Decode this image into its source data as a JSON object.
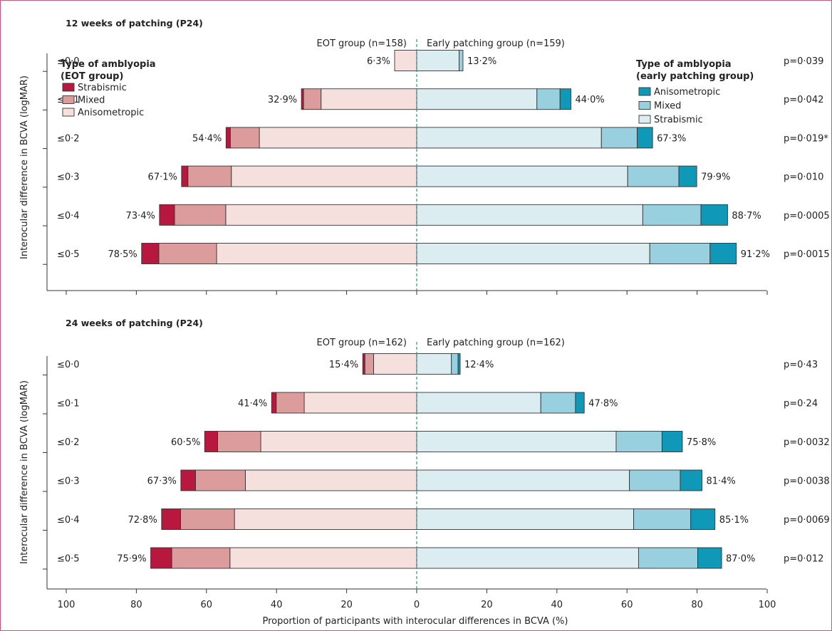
{
  "colors": {
    "eot": [
      "#b8173e",
      "#dc9c9c",
      "#f6e0dd"
    ],
    "early": [
      "#dcedf2",
      "#98d0df",
      "#0f98b8"
    ],
    "frame": "#c9577a",
    "center_line": "#2f8f8a"
  },
  "chart_data": [
    {
      "type": "bar",
      "orientation": "horizontal-diverging-stacked",
      "title": "12 weeks of patching (P24)",
      "ylabel": "Interocular difference in BCVA (logMAR)",
      "left_group_label": "EOT group (n=158)",
      "right_group_label": "Early patching group (n=159)",
      "categories": [
        "≤0·0",
        "≤0·1",
        "≤0·2",
        "≤0·3",
        "≤0·4",
        "≤0·5"
      ],
      "legend_eot": {
        "title_line1": "Type of amblyopia",
        "title_line2": "(EOT group)",
        "items": [
          "Strabismic",
          "Mixed",
          "Anisometropic"
        ]
      },
      "legend_early": {
        "title_line1": "Type of amblyopia",
        "title_line2": "(early patching group)",
        "items": [
          "Anisometropic",
          "Mixed",
          "Strabismic"
        ]
      },
      "eot": {
        "totals": [
          6.3,
          32.9,
          54.4,
          67.1,
          73.4,
          78.5
        ],
        "total_labels": [
          "6·3%",
          "32·9%",
          "54·4%",
          "67·1%",
          "73·4%",
          "78·5%"
        ],
        "series": [
          {
            "name": "Anisometropic",
            "values": [
              6.3,
              27.3,
              44.9,
              52.9,
              54.5,
              57.1
            ]
          },
          {
            "name": "Mixed",
            "values": [
              0.0,
              5.0,
              8.3,
              12.4,
              14.6,
              16.5
            ]
          },
          {
            "name": "Strabismic",
            "values": [
              0.0,
              0.6,
              1.2,
              1.8,
              4.3,
              4.9
            ]
          }
        ]
      },
      "early": {
        "totals": [
          13.2,
          44.0,
          67.3,
          79.9,
          88.7,
          91.2
        ],
        "total_labels": [
          "13·2%",
          "44·0%",
          "67·3%",
          "79·9%",
          "88·7%",
          "91·2%"
        ],
        "series": [
          {
            "name": "Strabismic",
            "values": [
              12.1,
              34.3,
              52.7,
              60.2,
              64.5,
              66.5
            ]
          },
          {
            "name": "Mixed",
            "values": [
              1.1,
              6.6,
              10.2,
              14.6,
              16.6,
              17.2
            ]
          },
          {
            "name": "Anisometropic",
            "values": [
              0.0,
              3.1,
              4.4,
              5.1,
              7.6,
              7.5
            ]
          }
        ]
      },
      "p_values": [
        "p=0·039",
        "p=0·042",
        "p=0·019*",
        "p=0·010",
        "p=0·0005",
        "p=0·0015"
      ]
    },
    {
      "type": "bar",
      "orientation": "horizontal-diverging-stacked",
      "title": "24 weeks of patching (P24)",
      "ylabel": "Interocular difference in BCVA (logMAR)",
      "xlabel": "Proportion of participants with interocular differences in BCVA (%)",
      "xlim": [
        -100,
        100
      ],
      "xticks": [
        "100",
        "80",
        "60",
        "40",
        "20",
        "0",
        "20",
        "40",
        "60",
        "80",
        "100"
      ],
      "left_group_label": "EOT group (n=162)",
      "right_group_label": "Early patching group (n=162)",
      "categories": [
        "≤0·0",
        "≤0·1",
        "≤0·2",
        "≤0·3",
        "≤0·4",
        "≤0·5"
      ],
      "eot": {
        "totals": [
          15.4,
          41.4,
          60.5,
          67.3,
          72.8,
          75.9
        ],
        "total_labels": [
          "15·4%",
          "41·4%",
          "60·5%",
          "67·3%",
          "72·8%",
          "75·9%"
        ],
        "series": [
          {
            "name": "Anisometropic",
            "values": [
              12.3,
              32.1,
              44.5,
              48.9,
              52.0,
              53.3
            ]
          },
          {
            "name": "Mixed",
            "values": [
              2.5,
              8.0,
              12.3,
              14.2,
              15.4,
              16.6
            ]
          },
          {
            "name": "Strabismic",
            "values": [
              0.6,
              1.3,
              3.7,
              4.2,
              5.4,
              6.0
            ]
          }
        ]
      },
      "early": {
        "totals": [
          12.4,
          47.8,
          75.8,
          81.4,
          85.1,
          87.0
        ],
        "total_labels": [
          "12·4%",
          "47·8%",
          "75·8%",
          "81·4%",
          "85·1%",
          "87·0%"
        ],
        "series": [
          {
            "name": "Strabismic",
            "values": [
              9.9,
              35.4,
              56.9,
              60.7,
              61.9,
              63.3
            ]
          },
          {
            "name": "Mixed",
            "values": [
              1.9,
              9.9,
              13.1,
              14.5,
              16.3,
              16.9
            ]
          },
          {
            "name": "Anisometropic",
            "values": [
              0.6,
              2.5,
              5.8,
              6.2,
              6.9,
              6.8
            ]
          }
        ]
      },
      "p_values": [
        "p=0·43",
        "p=0·24",
        "p=0·0032",
        "p=0·0038",
        "p=0·0069",
        "p=0·012"
      ]
    }
  ]
}
